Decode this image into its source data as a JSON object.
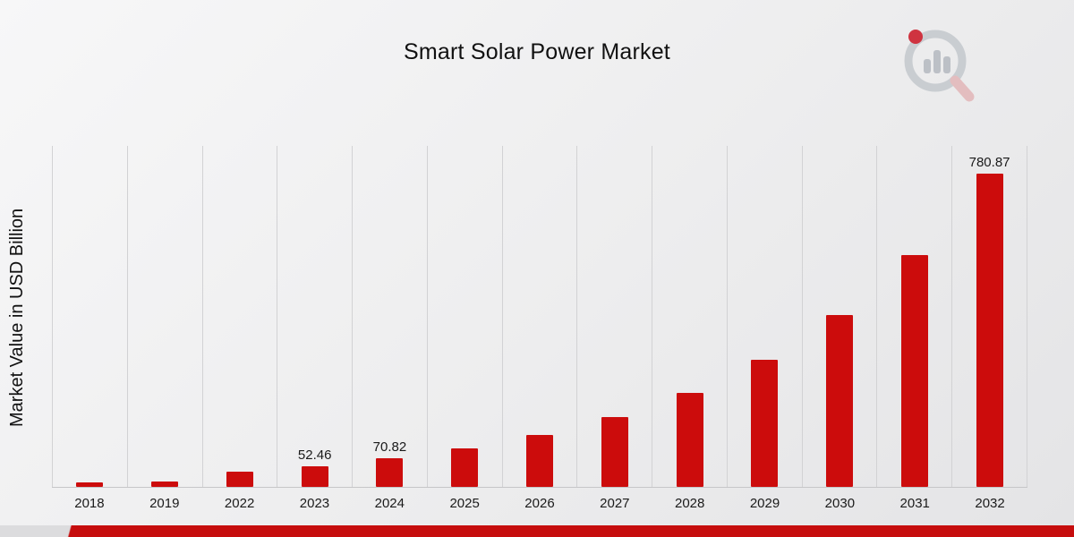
{
  "title": "Smart Solar Power Market",
  "ylabel": "Market Value in USD Billion",
  "brand": {
    "logo_name": "market-research-logo"
  },
  "footer": {
    "accent_color": "#c60d0d"
  },
  "chart_data": {
    "type": "bar",
    "title": "Smart Solar Power Market",
    "xlabel": "",
    "ylabel": "Market Value in USD Billion",
    "categories": [
      "2018",
      "2019",
      "2022",
      "2023",
      "2024",
      "2025",
      "2026",
      "2027",
      "2028",
      "2029",
      "2030",
      "2031",
      "2032"
    ],
    "values": [
      10.5,
      14.2,
      38.9,
      52.46,
      70.82,
      95.6,
      129.1,
      174.2,
      235.2,
      317.6,
      428.7,
      578.8,
      780.87
    ],
    "data_labels": [
      "",
      "",
      "",
      "52.46",
      "70.82",
      "",
      "",
      "",
      "",
      "",
      "",
      "",
      "780.87"
    ],
    "ylim": [
      0,
      850
    ],
    "bar_color": "#cc0c0c",
    "grid": "vertical",
    "legend": "none"
  }
}
